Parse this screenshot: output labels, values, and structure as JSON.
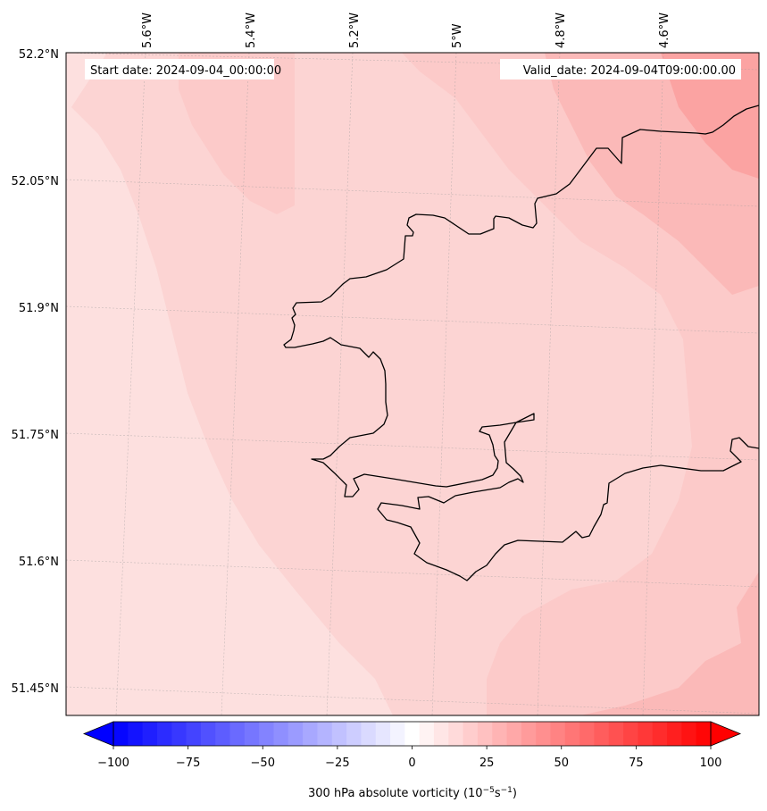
{
  "map": {
    "start_label": "Start date: 2024-09-04_00:00:00",
    "valid_label": "Valid_date: 2024-09-04T09:00:00.00",
    "lon_ticks": [
      "5.6°W",
      "5.4°W",
      "5.2°W",
      "5°W",
      "4.8°W",
      "4.6°W"
    ],
    "lat_ticks": [
      "52.2°N",
      "52.05°N",
      "51.9°N",
      "51.75°N",
      "51.6°N",
      "51.45°N"
    ],
    "shading_colors": [
      "#fde0df",
      "#fcd4d3",
      "#fccac9",
      "#fbb9b8",
      "#fba3a2"
    ]
  },
  "colorbar": {
    "ticks": [
      "−100",
      "−75",
      "−50",
      "−25",
      "0",
      "25",
      "50",
      "75",
      "100"
    ],
    "tick_values": [
      -100,
      -75,
      -50,
      -25,
      0,
      25,
      50,
      75,
      100
    ],
    "label": "300 hPa absolute vorticity (10",
    "label_exp1": "−5",
    "label_mid": "s",
    "label_exp2": "−1",
    "label_close": ")",
    "min": -100,
    "max": 100,
    "levels": 41,
    "colormap": "bwr"
  }
}
